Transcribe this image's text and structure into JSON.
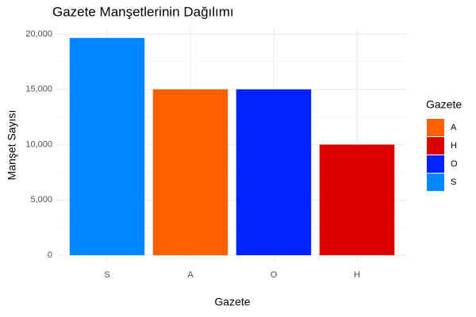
{
  "chart_data": {
    "type": "bar",
    "title": "Gazete Manşetlerinin Dağılımı",
    "x_label": "Gazete",
    "y_label": "Manşet Sayısı",
    "categories": [
      "S",
      "A",
      "O",
      "H"
    ],
    "values": [
      19650,
      15000,
      15000,
      10000
    ],
    "colors": [
      "#0088ff",
      "#ff6000",
      "#0022ff",
      "#dd0000"
    ],
    "ylim": [
      -570,
      20570
    ],
    "yticks": [
      0,
      {
        "value": 5000,
        "label": "5,000"
      },
      {
        "value": 10000,
        "label": "10,000"
      },
      {
        "value": 15000,
        "label": "15,000"
      },
      {
        "value": 20000,
        "label": "20,000"
      }
    ],
    "minor_yticks": [
      2500,
      7500,
      12500,
      17500
    ],
    "grid": true,
    "legend": {
      "title": "Gazete",
      "position": "right",
      "entries": [
        "A",
        "H",
        "O",
        "S"
      ]
    }
  }
}
